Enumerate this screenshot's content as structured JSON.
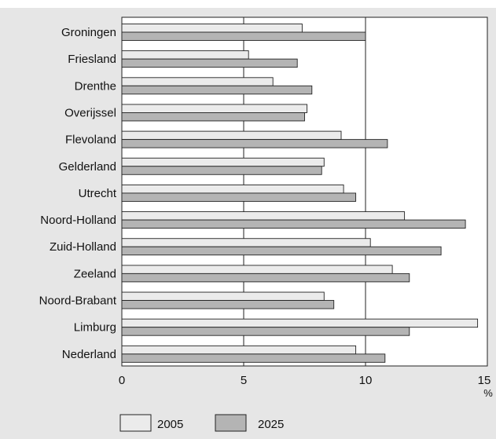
{
  "caption_fragment": "",
  "chart_data": {
    "type": "bar",
    "orientation": "horizontal",
    "categories": [
      "Groningen",
      "Friesland",
      "Drenthe",
      "Overijssel",
      "Flevoland",
      "Gelderland",
      "Utrecht",
      "Noord-Holland",
      "Zuid-Holland",
      "Zeeland",
      "Noord-Brabant",
      "Limburg",
      "Nederland"
    ],
    "series": [
      {
        "name": "2005",
        "color": "#ebebeb",
        "values": [
          7.4,
          5.2,
          6.2,
          7.6,
          9.0,
          8.3,
          9.1,
          11.6,
          10.2,
          11.1,
          8.3,
          14.6,
          9.6
        ]
      },
      {
        "name": "2025",
        "color": "#b4b4b4",
        "values": [
          10.0,
          7.2,
          7.8,
          7.5,
          10.9,
          8.2,
          9.6,
          14.1,
          13.1,
          11.8,
          8.7,
          11.8,
          10.8
        ]
      }
    ],
    "x_ticks": [
      "0",
      "5",
      "10",
      "15"
    ],
    "x_unit": "%",
    "xlim": [
      0,
      15
    ],
    "grid": "vertical lines at 5 and 10",
    "legend_position": "bottom-left"
  }
}
